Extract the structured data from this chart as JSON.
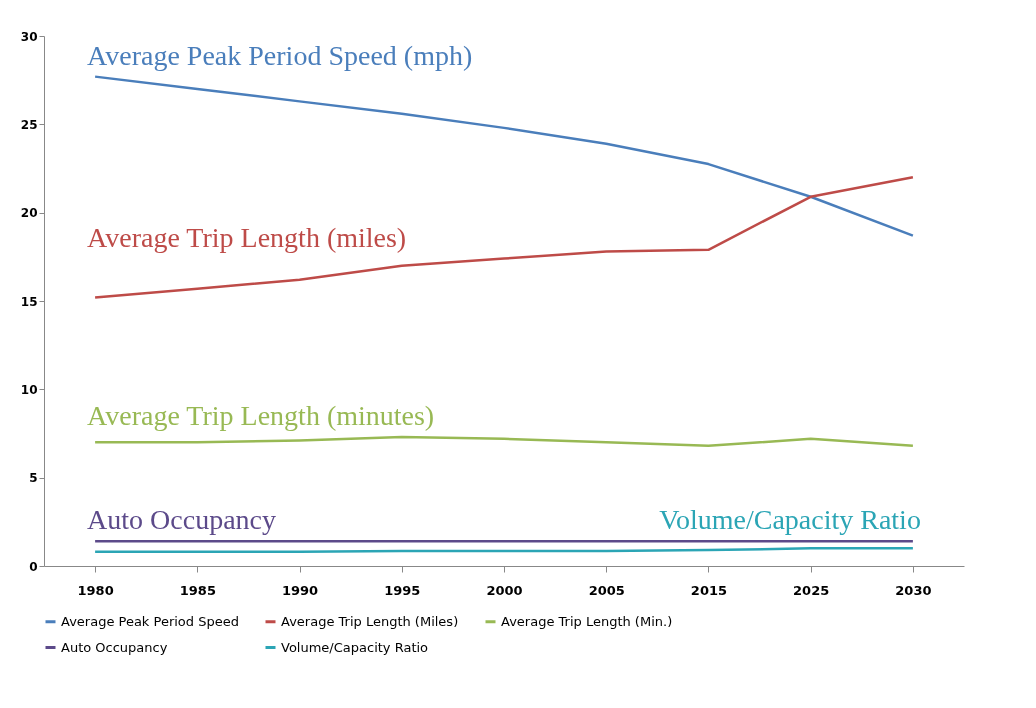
{
  "chart_data": {
    "type": "line",
    "categories": [
      "1980",
      "1985",
      "1990",
      "1995",
      "2000",
      "2005",
      "2015",
      "2025",
      "2030"
    ],
    "series": [
      {
        "name": "Average Peak Period Speed",
        "color": "#4a7ebb",
        "values": [
          27.7,
          27.0,
          26.3,
          25.6,
          24.8,
          23.9,
          22.75,
          20.9,
          18.7
        ]
      },
      {
        "name": "Average Trip Length (Miles)",
        "color": "#be4b48",
        "values": [
          15.2,
          15.7,
          16.2,
          17.0,
          17.4,
          17.8,
          17.9,
          20.9,
          22.0
        ]
      },
      {
        "name": "Average Trip Length (Min.)",
        "color": "#98b954",
        "values": [
          7.0,
          7.0,
          7.1,
          7.3,
          7.2,
          7.0,
          6.8,
          7.2,
          6.8
        ]
      },
      {
        "name": "Auto Occupancy",
        "color": "#5c4a8a",
        "values": [
          1.4,
          1.4,
          1.4,
          1.4,
          1.4,
          1.4,
          1.4,
          1.4,
          1.4
        ]
      },
      {
        "name": "Volume/Capacity Ratio",
        "color": "#2ba5b5",
        "values": [
          0.8,
          0.8,
          0.8,
          0.85,
          0.85,
          0.85,
          0.9,
          1.0,
          1.0
        ]
      }
    ],
    "ylim": [
      0,
      30
    ],
    "yticks": [
      0,
      5,
      10,
      15,
      20,
      25,
      30
    ],
    "grid": false,
    "legend": "bottom",
    "annotations": [
      "Average Peak Period Speed (mph)",
      "Average Trip Length (miles)",
      "Average Trip Length (minutes)",
      "Auto Occupancy",
      "Volume/Capacity Ratio"
    ]
  }
}
